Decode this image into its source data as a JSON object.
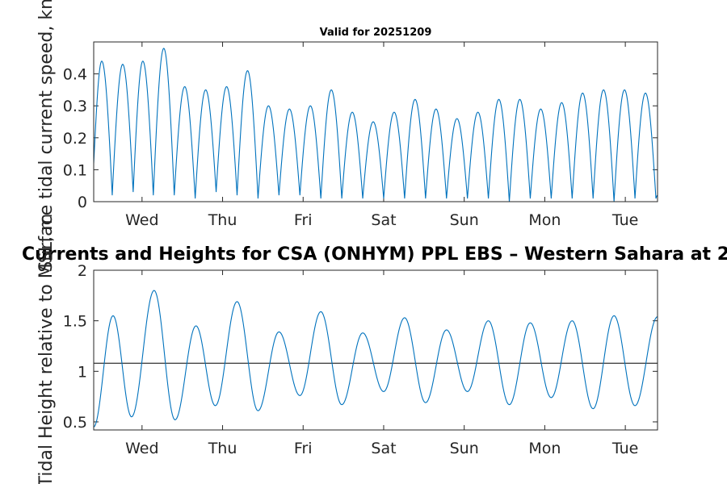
{
  "chart_data": [
    {
      "type": "line",
      "title": "Valid for 20251209",
      "xlabel": "",
      "ylabel": "Surface tidal current speed, knots",
      "ylim": [
        0,
        0.5
      ],
      "yticks": [
        0,
        0.1,
        0.2,
        0.3,
        0.4
      ],
      "ytick_labels": [
        "0",
        "0.1",
        "0.2",
        "0.3",
        "0.4"
      ],
      "xlim_days": [
        0,
        7
      ],
      "xtick_days": [
        0.6,
        1.6,
        2.6,
        3.6,
        4.6,
        5.6,
        6.6
      ],
      "xtick_labels": [
        "Wed",
        "Thu",
        "Fri",
        "Sat",
        "Sun",
        "Mon",
        "Tue"
      ],
      "series": [
        {
          "name": "current speed",
          "color": "#0072bd",
          "peaks": [
            {
              "t": 0.1,
              "v": 0.44
            },
            {
              "t": 0.36,
              "v": 0.43
            },
            {
              "t": 0.61,
              "v": 0.44
            },
            {
              "t": 0.87,
              "v": 0.48
            },
            {
              "t": 1.13,
              "v": 0.36
            },
            {
              "t": 1.39,
              "v": 0.35
            },
            {
              "t": 1.65,
              "v": 0.36
            },
            {
              "t": 1.91,
              "v": 0.41
            },
            {
              "t": 2.17,
              "v": 0.3
            },
            {
              "t": 2.43,
              "v": 0.29
            },
            {
              "t": 2.69,
              "v": 0.3
            },
            {
              "t": 2.95,
              "v": 0.35
            },
            {
              "t": 3.21,
              "v": 0.28
            },
            {
              "t": 3.47,
              "v": 0.25
            },
            {
              "t": 3.73,
              "v": 0.28
            },
            {
              "t": 3.99,
              "v": 0.32
            },
            {
              "t": 4.25,
              "v": 0.29
            },
            {
              "t": 4.51,
              "v": 0.26
            },
            {
              "t": 4.77,
              "v": 0.28
            },
            {
              "t": 5.03,
              "v": 0.32
            },
            {
              "t": 5.29,
              "v": 0.32
            },
            {
              "t": 5.55,
              "v": 0.29
            },
            {
              "t": 5.81,
              "v": 0.31
            },
            {
              "t": 6.07,
              "v": 0.34
            },
            {
              "t": 6.33,
              "v": 0.35
            },
            {
              "t": 6.59,
              "v": 0.35
            },
            {
              "t": 6.85,
              "v": 0.34
            }
          ],
          "troughs": [
            {
              "t": 0.23,
              "v": 0.02
            },
            {
              "t": 0.49,
              "v": 0.03
            },
            {
              "t": 0.74,
              "v": 0.02
            },
            {
              "t": 1.0,
              "v": 0.02
            },
            {
              "t": 1.26,
              "v": 0.01
            },
            {
              "t": 1.52,
              "v": 0.03
            },
            {
              "t": 1.78,
              "v": 0.02
            },
            {
              "t": 2.04,
              "v": 0.01
            },
            {
              "t": 2.3,
              "v": 0.02
            },
            {
              "t": 2.56,
              "v": 0.02
            },
            {
              "t": 2.82,
              "v": 0.01
            },
            {
              "t": 3.08,
              "v": 0.01
            },
            {
              "t": 3.34,
              "v": 0.01
            },
            {
              "t": 3.6,
              "v": 0.01
            },
            {
              "t": 3.86,
              "v": 0.01
            },
            {
              "t": 4.12,
              "v": 0.01
            },
            {
              "t": 4.38,
              "v": 0.01
            },
            {
              "t": 4.64,
              "v": 0.01
            },
            {
              "t": 4.9,
              "v": 0.01
            },
            {
              "t": 5.16,
              "v": 0.0
            },
            {
              "t": 5.42,
              "v": 0.01
            },
            {
              "t": 5.68,
              "v": 0.01
            },
            {
              "t": 5.94,
              "v": 0.01
            },
            {
              "t": 6.2,
              "v": 0.01
            },
            {
              "t": 6.46,
              "v": 0.0
            },
            {
              "t": 6.72,
              "v": 0.01
            },
            {
              "t": 6.98,
              "v": 0.01
            }
          ],
          "start": {
            "t": 0.0,
            "v": 0.12
          },
          "end": {
            "t": 7.0,
            "v": 0.02
          }
        }
      ]
    },
    {
      "type": "line",
      "title": "Currents and Heights for CSA (ONHYM) PPL EBS  – Western Sahara at 2",
      "xlabel": "",
      "ylabel": "Tidal Height relative to MSL, m",
      "ylim": [
        0.42,
        2.0
      ],
      "yticks": [
        0.5,
        1,
        1.5,
        2
      ],
      "ytick_labels": [
        "0.5",
        "1",
        "1.5",
        "2"
      ],
      "xlim_days": [
        0,
        7
      ],
      "xtick_days": [
        0.6,
        1.6,
        2.6,
        3.6,
        4.6,
        5.6,
        6.6
      ],
      "xtick_labels": [
        "Wed",
        "Thu",
        "Fri",
        "Sat",
        "Sun",
        "Mon",
        "Tue"
      ],
      "reference_line": 1.08,
      "series": [
        {
          "name": "tidal height",
          "color": "#0072bd",
          "extrema": [
            {
              "t": 0.0,
              "v": 0.45
            },
            {
              "t": 0.24,
              "v": 1.55
            },
            {
              "t": 0.47,
              "v": 0.55
            },
            {
              "t": 0.75,
              "v": 1.8
            },
            {
              "t": 1.01,
              "v": 0.52
            },
            {
              "t": 1.27,
              "v": 1.45
            },
            {
              "t": 1.51,
              "v": 0.66
            },
            {
              "t": 1.78,
              "v": 1.69
            },
            {
              "t": 2.04,
              "v": 0.61
            },
            {
              "t": 2.3,
              "v": 1.39
            },
            {
              "t": 2.56,
              "v": 0.76
            },
            {
              "t": 2.82,
              "v": 1.59
            },
            {
              "t": 3.08,
              "v": 0.67
            },
            {
              "t": 3.34,
              "v": 1.38
            },
            {
              "t": 3.6,
              "v": 0.8
            },
            {
              "t": 3.86,
              "v": 1.53
            },
            {
              "t": 4.12,
              "v": 0.69
            },
            {
              "t": 4.38,
              "v": 1.41
            },
            {
              "t": 4.64,
              "v": 0.8
            },
            {
              "t": 4.9,
              "v": 1.5
            },
            {
              "t": 5.16,
              "v": 0.67
            },
            {
              "t": 5.42,
              "v": 1.48
            },
            {
              "t": 5.68,
              "v": 0.74
            },
            {
              "t": 5.94,
              "v": 1.5
            },
            {
              "t": 6.2,
              "v": 0.63
            },
            {
              "t": 6.46,
              "v": 1.55
            },
            {
              "t": 6.72,
              "v": 0.66
            },
            {
              "t": 7.0,
              "v": 1.54
            }
          ]
        }
      ]
    }
  ]
}
